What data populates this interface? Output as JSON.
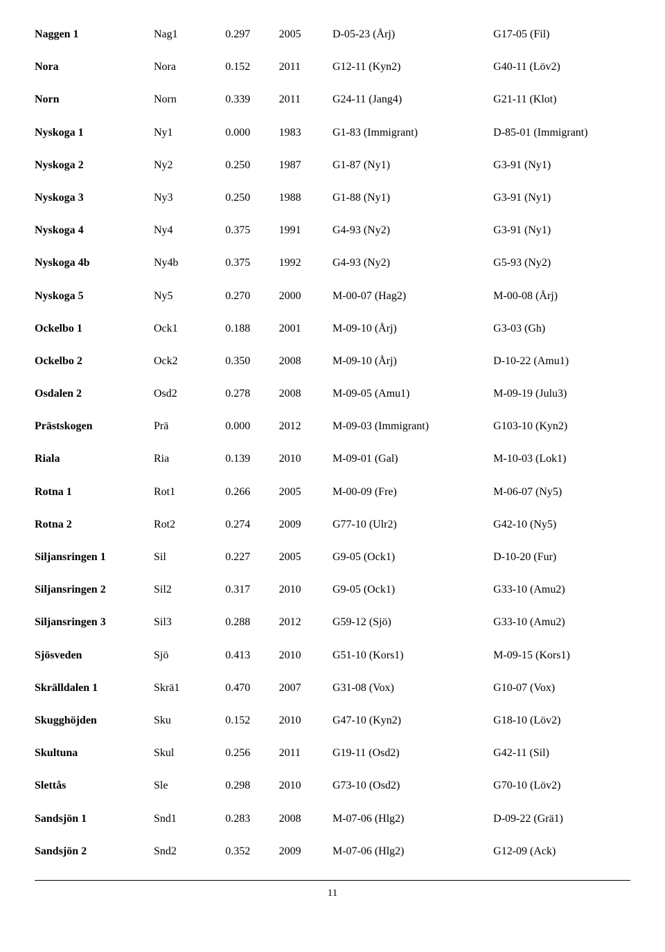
{
  "rows": [
    {
      "name": "Naggen 1",
      "code": "Nag1",
      "val": "0.297",
      "year": "2005",
      "ref1": "D-05-23 (Årj)",
      "ref2": "G17-05 (Fil)"
    },
    {
      "name": "Nora",
      "code": "Nora",
      "val": "0.152",
      "year": "2011",
      "ref1": "G12-11 (Kyn2)",
      "ref2": "G40-11 (Löv2)"
    },
    {
      "name": "Norn",
      "code": "Norn",
      "val": "0.339",
      "year": "2011",
      "ref1": "G24-11 (Jang4)",
      "ref2": "G21-11 (Klot)"
    },
    {
      "name": "Nyskoga 1",
      "code": "Ny1",
      "val": "0.000",
      "year": "1983",
      "ref1": "G1-83 (Immigrant)",
      "ref2": "D-85-01 (Immigrant)"
    },
    {
      "name": "Nyskoga 2",
      "code": "Ny2",
      "val": "0.250",
      "year": "1987",
      "ref1": "G1-87 (Ny1)",
      "ref2": "G3-91 (Ny1)"
    },
    {
      "name": "Nyskoga 3",
      "code": "Ny3",
      "val": "0.250",
      "year": "1988",
      "ref1": "G1-88 (Ny1)",
      "ref2": "G3-91 (Ny1)"
    },
    {
      "name": "Nyskoga 4",
      "code": "Ny4",
      "val": "0.375",
      "year": "1991",
      "ref1": "G4-93 (Ny2)",
      "ref2": "G3-91 (Ny1)"
    },
    {
      "name": "Nyskoga 4b",
      "code": "Ny4b",
      "val": "0.375",
      "year": "1992",
      "ref1": "G4-93 (Ny2)",
      "ref2": "G5-93 (Ny2)"
    },
    {
      "name": "Nyskoga 5",
      "code": "Ny5",
      "val": "0.270",
      "year": "2000",
      "ref1": "M-00-07 (Hag2)",
      "ref2": "M-00-08 (Årj)"
    },
    {
      "name": "Ockelbo 1",
      "code": "Ock1",
      "val": "0.188",
      "year": "2001",
      "ref1": "M-09-10 (Årj)",
      "ref2": "G3-03 (Gh)"
    },
    {
      "name": "Ockelbo 2",
      "code": "Ock2",
      "val": "0.350",
      "year": "2008",
      "ref1": "M-09-10 (Årj)",
      "ref2": "D-10-22 (Amu1)"
    },
    {
      "name": "Osdalen 2",
      "code": "Osd2",
      "val": "0.278",
      "year": "2008",
      "ref1": "M-09-05 (Amu1)",
      "ref2": "M-09-19 (Julu3)"
    },
    {
      "name": "Prästskogen",
      "code": "Prä",
      "val": "0.000",
      "year": "2012",
      "ref1": "M-09-03 (Immigrant)",
      "ref2": "G103-10 (Kyn2)"
    },
    {
      "name": "Riala",
      "code": "Ria",
      "val": "0.139",
      "year": "2010",
      "ref1": "M-09-01 (Gal)",
      "ref2": "M-10-03 (Lok1)"
    },
    {
      "name": "Rotna 1",
      "code": "Rot1",
      "val": "0.266",
      "year": "2005",
      "ref1": "M-00-09 (Fre)",
      "ref2": "M-06-07 (Ny5)"
    },
    {
      "name": "Rotna 2",
      "code": "Rot2",
      "val": "0.274",
      "year": "2009",
      "ref1": "G77-10 (Ulr2)",
      "ref2": "G42-10 (Ny5)"
    },
    {
      "name": "Siljansringen 1",
      "code": "Sil",
      "val": "0.227",
      "year": "2005",
      "ref1": "G9-05 (Ock1)",
      "ref2": "D-10-20 (Fur)"
    },
    {
      "name": "Siljansringen 2",
      "code": "Sil2",
      "val": "0.317",
      "year": "2010",
      "ref1": "G9-05 (Ock1)",
      "ref2": "G33-10 (Amu2)"
    },
    {
      "name": "Siljansringen 3",
      "code": "Sil3",
      "val": "0.288",
      "year": "2012",
      "ref1": "G59-12 (Sjö)",
      "ref2": "G33-10 (Amu2)"
    },
    {
      "name": "Sjösveden",
      "code": "Sjö",
      "val": "0.413",
      "year": "2010",
      "ref1": "G51-10 (Kors1)",
      "ref2": "M-09-15 (Kors1)"
    },
    {
      "name": "Skrälldalen 1",
      "code": "Skrä1",
      "val": "0.470",
      "year": "2007",
      "ref1": "G31-08 (Vox)",
      "ref2": "G10-07 (Vox)"
    },
    {
      "name": "Skugghöjden",
      "code": "Sku",
      "val": "0.152",
      "year": "2010",
      "ref1": "G47-10 (Kyn2)",
      "ref2": "G18-10 (Löv2)"
    },
    {
      "name": "Skultuna",
      "code": "Skul",
      "val": "0.256",
      "year": "2011",
      "ref1": "G19-11 (Osd2)",
      "ref2": "G42-11 (Sil)"
    },
    {
      "name": "Slettås",
      "code": "Sle",
      "val": "0.298",
      "year": "2010",
      "ref1": "G73-10 (Osd2)",
      "ref2": "G70-10 (Löv2)"
    },
    {
      "name": "Sandsjön 1",
      "code": "Snd1",
      "val": "0.283",
      "year": "2008",
      "ref1": "M-07-06 (Hlg2)",
      "ref2": "D-09-22 (Grä1)"
    },
    {
      "name": "Sandsjön 2",
      "code": "Snd2",
      "val": "0.352",
      "year": "2009",
      "ref1": "M-07-06 (Hlg2)",
      "ref2": "G12-09 (Ack)"
    }
  ],
  "page_number": "11"
}
